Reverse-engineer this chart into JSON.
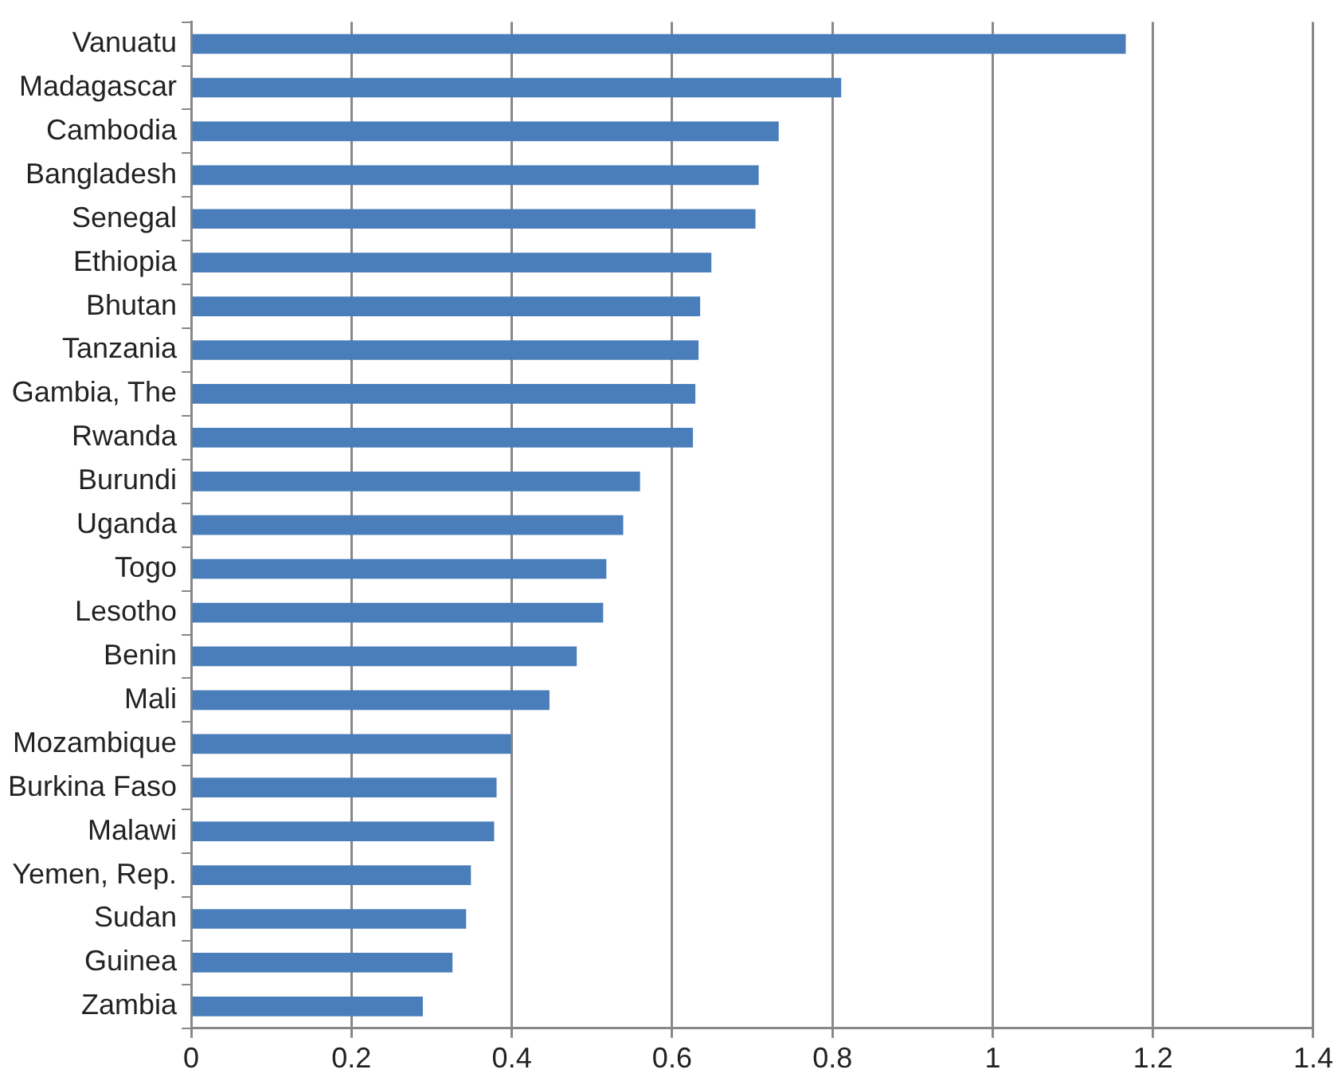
{
  "chart_data": {
    "type": "bar",
    "orientation": "horizontal",
    "categories": [
      "Vanuatu",
      "Madagascar",
      "Cambodia",
      "Bangladesh",
      "Senegal",
      "Ethiopia",
      "Bhutan",
      "Tanzania",
      "Gambia, The",
      "Rwanda",
      "Burundi",
      "Uganda",
      "Togo",
      "Lesotho",
      "Benin",
      "Mali",
      "Mozambique",
      "Burkina Faso",
      "Malawi",
      "Yemen, Rep.",
      "Sudan",
      "Guinea",
      "Zambia"
    ],
    "values": [
      1.166,
      0.811,
      0.733,
      0.708,
      0.704,
      0.649,
      0.635,
      0.633,
      0.629,
      0.626,
      0.56,
      0.539,
      0.518,
      0.514,
      0.481,
      0.447,
      0.399,
      0.381,
      0.378,
      0.349,
      0.343,
      0.326,
      0.289
    ],
    "color": "#4a7ebb",
    "xlim": [
      0,
      1.4
    ],
    "xticks": [
      0,
      0.2,
      0.4,
      0.6,
      0.8,
      1,
      1.2,
      1.4
    ],
    "grid": "x",
    "legend": false
  }
}
